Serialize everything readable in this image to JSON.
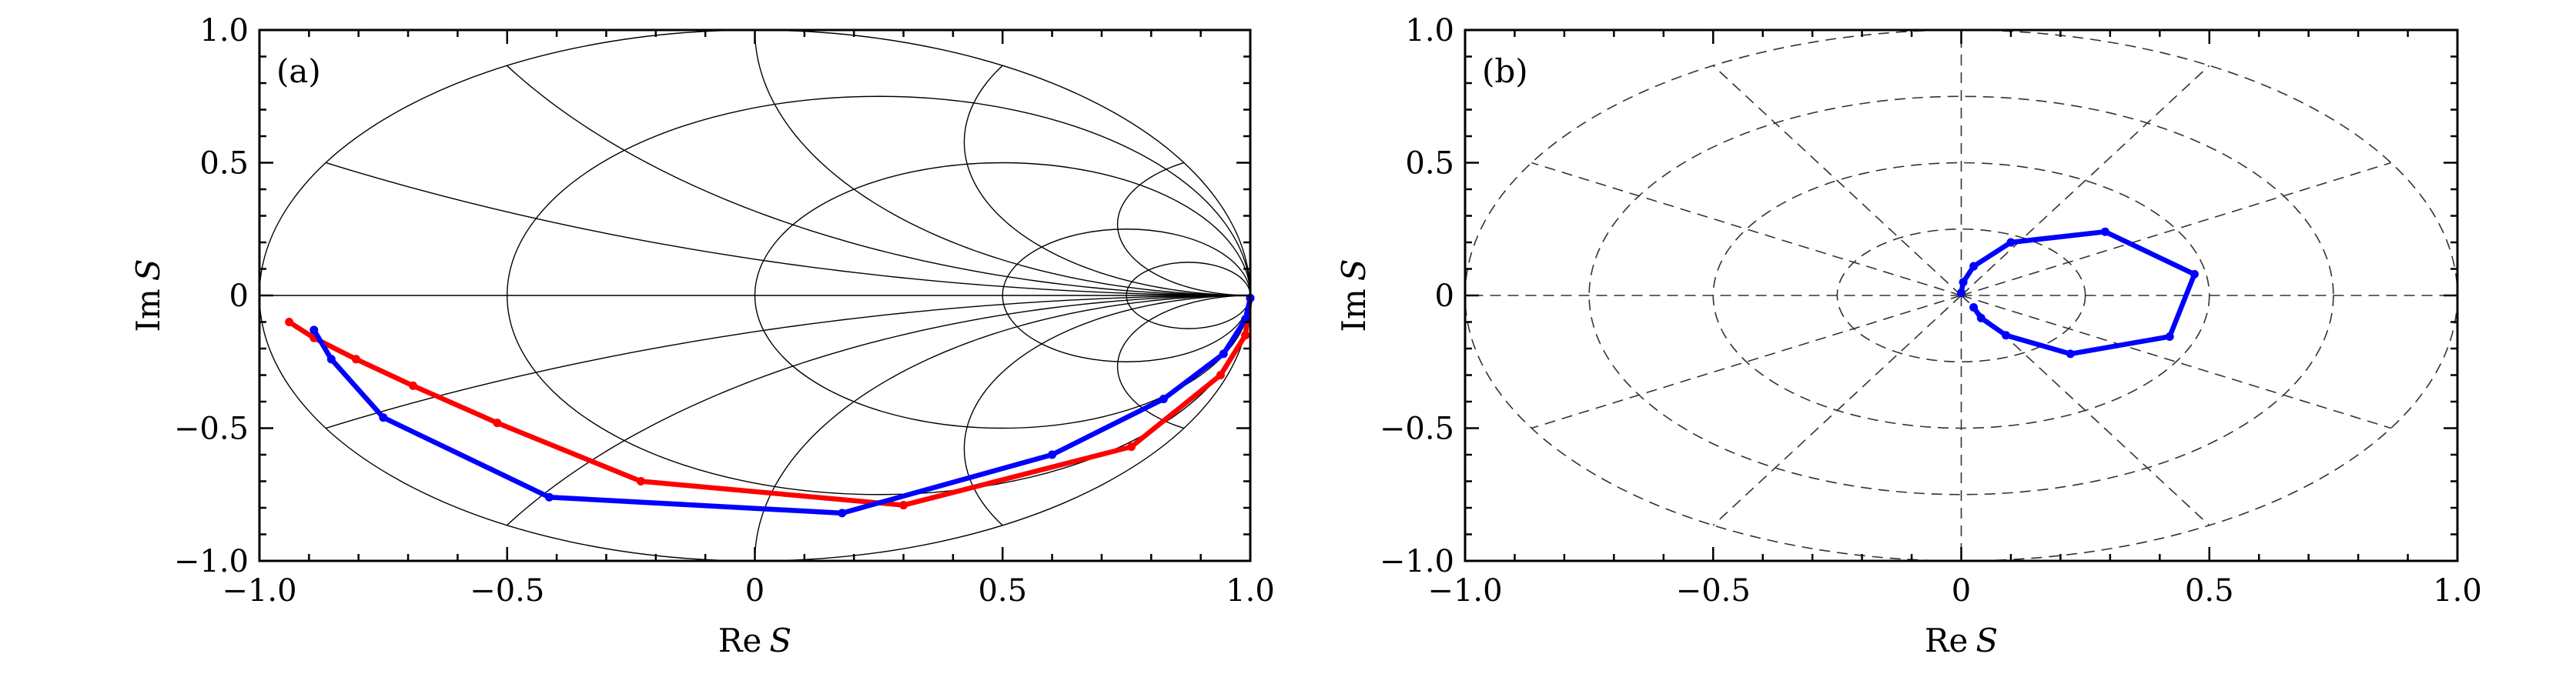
{
  "chart_data": [
    {
      "panel": "(a)",
      "type": "line",
      "grid": "smith",
      "xlabel_text": "Re",
      "ylabel_text": "Im",
      "label_var": "S",
      "xlim": [
        -1.0,
        1.0
      ],
      "ylim": [
        -1.0,
        1.0
      ],
      "xticks": [
        {
          "v": -1.0,
          "label": "−1.0"
        },
        {
          "v": -0.5,
          "label": "−0.5"
        },
        {
          "v": 0,
          "label": "0"
        },
        {
          "v": 0.5,
          "label": "0.5"
        },
        {
          "v": 1.0,
          "label": "1.0"
        }
      ],
      "yticks": [
        {
          "v": -1.0,
          "label": "−1.0"
        },
        {
          "v": -0.5,
          "label": "−0.5"
        },
        {
          "v": 0,
          "label": "0"
        },
        {
          "v": 0.5,
          "label": "0.5"
        },
        {
          "v": 1.0,
          "label": "1.0"
        }
      ],
      "smith_resistance": [
        0,
        0.3333,
        1,
        3,
        7
      ],
      "smith_reactance": [
        0.268,
        0.577,
        1,
        1.732,
        3.732
      ],
      "series": [
        {
          "name": "red",
          "color": "#ff0000",
          "points": [
            [
              -0.94,
              -0.1
            ],
            [
              -0.89,
              -0.16
            ],
            [
              -0.805,
              -0.24
            ],
            [
              -0.69,
              -0.34
            ],
            [
              -0.52,
              -0.48
            ],
            [
              -0.23,
              -0.7
            ],
            [
              0.3,
              -0.79
            ],
            [
              0.76,
              -0.57
            ],
            [
              0.94,
              -0.3
            ],
            [
              0.99,
              -0.15
            ],
            [
              1.0,
              -0.01
            ]
          ]
        },
        {
          "name": "blue",
          "color": "#0000ff",
          "points": [
            [
              -0.89,
              -0.13
            ],
            [
              -0.855,
              -0.24
            ],
            [
              -0.75,
              -0.46
            ],
            [
              -0.415,
              -0.76
            ],
            [
              0.176,
              -0.82
            ],
            [
              0.6,
              -0.6
            ],
            [
              0.825,
              -0.39
            ],
            [
              0.946,
              -0.22
            ],
            [
              0.99,
              -0.09
            ],
            [
              1.0,
              -0.01
            ]
          ]
        }
      ]
    },
    {
      "panel": "(b)",
      "type": "line",
      "grid": "polar",
      "xlabel_text": "Re",
      "ylabel_text": "Im",
      "label_var": "S",
      "xlim": [
        -1.0,
        1.0
      ],
      "ylim": [
        -1.0,
        1.0
      ],
      "xticks": [
        {
          "v": -1.0,
          "label": "−1.0"
        },
        {
          "v": -0.5,
          "label": "−0.5"
        },
        {
          "v": 0,
          "label": "0"
        },
        {
          "v": 0.5,
          "label": "0.5"
        },
        {
          "v": 1.0,
          "label": "1.0"
        }
      ],
      "yticks": [
        {
          "v": -1.0,
          "label": "−1.0"
        },
        {
          "v": -0.5,
          "label": "−0.5"
        },
        {
          "v": 0,
          "label": "0"
        },
        {
          "v": 0.5,
          "label": "0.5"
        },
        {
          "v": 1.0,
          "label": "1.0"
        }
      ],
      "polar_radii": [
        0.25,
        0.5,
        0.75,
        1.0
      ],
      "polar_angles_deg": [
        0,
        30,
        60,
        90,
        120,
        150,
        180,
        210,
        240,
        270,
        300,
        330
      ],
      "series": [
        {
          "name": "blue",
          "color": "#0000ff",
          "points": [
            [
              0.0,
              0.01
            ],
            [
              0.004,
              0.05
            ],
            [
              0.025,
              0.11
            ],
            [
              0.1,
              0.2
            ],
            [
              0.29,
              0.24
            ],
            [
              0.47,
              0.08
            ],
            [
              0.42,
              -0.155
            ],
            [
              0.22,
              -0.22
            ],
            [
              0.09,
              -0.15
            ],
            [
              0.04,
              -0.085
            ],
            [
              0.025,
              -0.045
            ]
          ]
        }
      ]
    }
  ]
}
